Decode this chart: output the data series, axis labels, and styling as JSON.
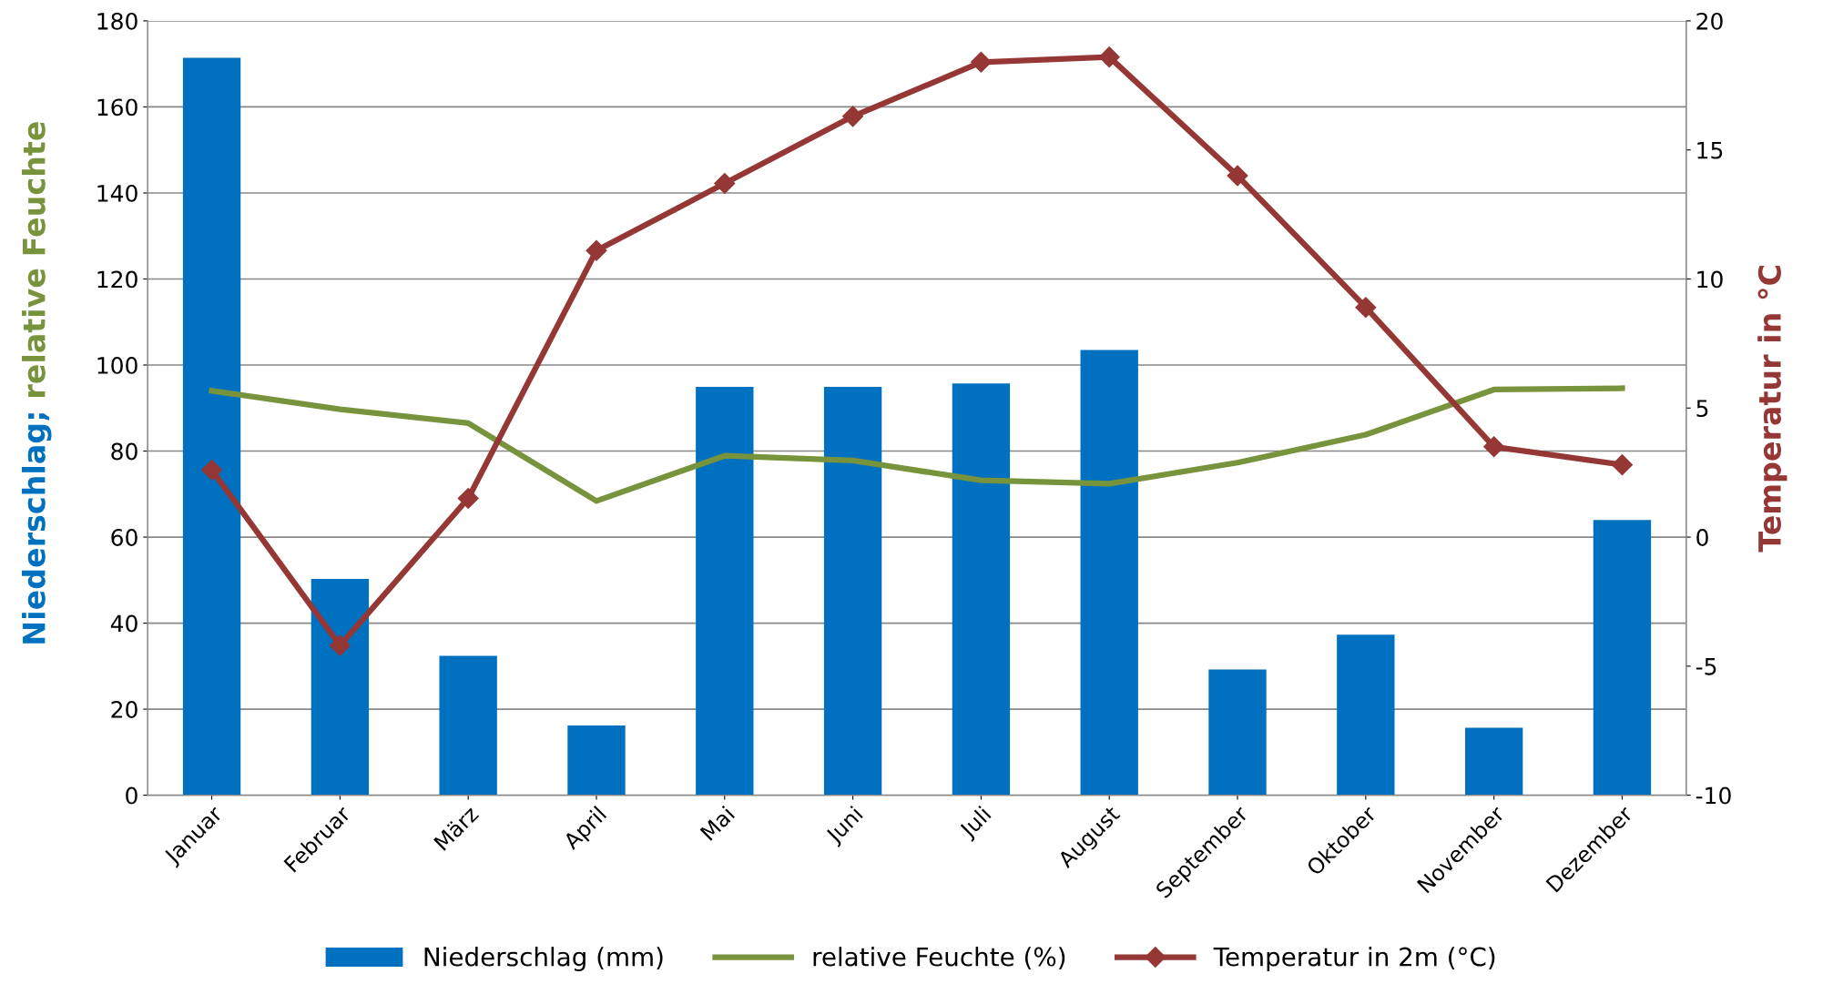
{
  "chart_data": {
    "type": "bar",
    "categories": [
      "Januar",
      "Februar",
      "März",
      "April",
      "Mai",
      "Juni",
      "Juli",
      "August",
      "September",
      "Oktober",
      "November",
      "Dezember"
    ],
    "series": [
      {
        "name": "Niederschlag (mm)",
        "color": "#0070c0",
        "values": [
          171.4,
          50.3,
          32.4,
          16.2,
          94.9,
          94.9,
          95.7,
          103.5,
          29.2,
          37.3,
          15.7,
          64.0
        ]
      },
      {
        "name": "relative Feuchte (%)",
        "type": "line",
        "color": "#77933c",
        "marker": "none",
        "values": [
          94.0,
          89.7,
          86.5,
          68.4,
          78.9,
          77.8,
          73.2,
          72.4,
          77.3,
          83.8,
          94.3,
          94.6
        ]
      },
      {
        "name": "Temperatur in 2m (°C)",
        "type": "line",
        "color": "#953735",
        "marker": "diamond",
        "axis": "y2",
        "values": [
          2.6,
          -4.2,
          1.5,
          11.1,
          13.7,
          16.3,
          18.4,
          18.6,
          14.0,
          8.9,
          3.5,
          2.8
        ]
      }
    ],
    "ylabel": "Niederschlag; relative Feuchte",
    "y2label": "Temperatur in °C",
    "ylim": [
      0,
      180
    ],
    "yticks": [
      0,
      20,
      40,
      60,
      80,
      100,
      120,
      140,
      160,
      180
    ],
    "y2lim": [
      -10,
      20
    ],
    "y2ticks": [
      -10,
      -5,
      0,
      5,
      10,
      15,
      20
    ],
    "grid": "y",
    "legend": "bottom"
  }
}
